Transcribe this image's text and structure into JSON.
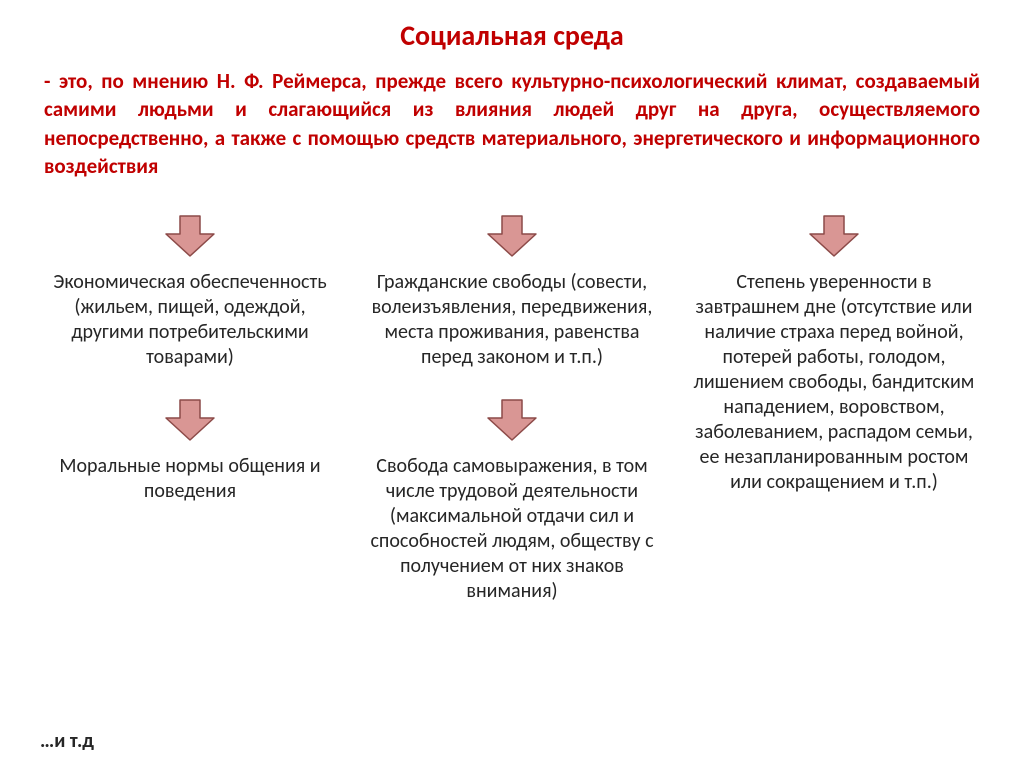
{
  "title": "Социальная среда",
  "definition": "- это, по мнению Н. Ф. Реймерса, прежде всего культурно-психологический климат, создаваемый самими людьми и слагающийся из влияния людей друг на друга, осуществляемого непосредственно, а также с помощью средств материального, энергетического и информационного воздействия",
  "blocks": {
    "b1": "Экономическая обеспеченность (жильем, пищей, одеждой, другими потребительскими товарами)",
    "b2": "Гражданские свободы (совести, волеизъявления, передвижения, места проживания, равенства перед законом и т.п.)",
    "b3": "Степень уверенности в завтрашнем дне (отсутствие или наличие страха перед войной, потерей работы, голодом, лишением свободы, бандитским нападением, воровством, заболеванием, распадом семьи, ее незапланированным ростом или сокращением и т.п.)",
    "b4": "Моральные нормы общения и поведения",
    "b5": "Свобода самовыражения, в том числе трудовой деятельности (максимальной отдачи сил и способностей людям, обществу с получением от них знаков внимания)"
  },
  "footer": "…и т.д",
  "style": {
    "title_color": "#c00000",
    "title_fontsize": 28,
    "definition_color": "#c00000",
    "definition_fontsize": 21,
    "block_color": "#262626",
    "block_fontsize": 20,
    "footer_color": "#262626",
    "footer_fontsize": 20,
    "arrow_fill": "#d99694",
    "arrow_stroke": "#8c4a48",
    "arrow_w": 52,
    "arrow_h": 44,
    "background": "#ffffff"
  }
}
